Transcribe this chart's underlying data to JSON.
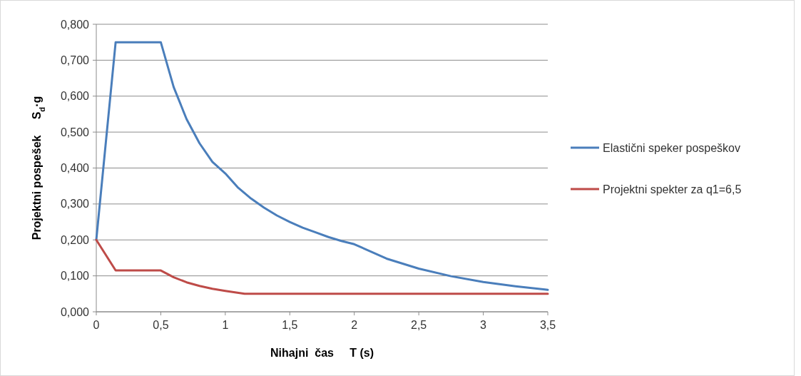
{
  "chart_data": {
    "type": "line",
    "xlabel": "Nihajni  čas     T (s)",
    "ylabel": "Projektni pospešek     S$_{d}$·g",
    "xlim": [
      0,
      3.5
    ],
    "xticks": [
      0,
      {
        "value": 0.5,
        "label": "0,5"
      },
      1,
      {
        "value": 1.5,
        "label": "1,5"
      },
      2,
      {
        "value": 2.5,
        "label": "2,5"
      },
      3,
      {
        "value": 3.5,
        "label": "3,5"
      }
    ],
    "ylim": [
      0,
      0.8
    ],
    "yticks": [
      {
        "value": 0,
        "label": "0,000"
      },
      {
        "value": 0.1,
        "label": "0,100"
      },
      {
        "value": 0.2,
        "label": "0,200"
      },
      {
        "value": 0.3,
        "label": "0,300"
      },
      {
        "value": 0.4,
        "label": "0,400"
      },
      {
        "value": 0.5,
        "label": "0,500"
      },
      {
        "value": 0.6,
        "label": "0,600"
      },
      {
        "value": 0.7,
        "label": "0,700"
      },
      {
        "value": 0.8,
        "label": "0,800"
      }
    ],
    "grid": "y",
    "legend": "right",
    "marker": "none",
    "line_style": "solid",
    "series": [
      {
        "name": "Elastični speker pospeškov",
        "color": "#4a7ebb",
        "x": [
          0,
          0.15,
          0.5,
          0.6,
          0.7,
          0.8,
          0.9,
          1.0,
          1.1,
          1.2,
          1.3,
          1.4,
          1.5,
          1.6,
          1.7,
          1.8,
          1.9,
          2.0,
          2.25,
          2.5,
          2.75,
          3.0,
          3.25,
          3.5
        ],
        "values": [
          0.2,
          0.75,
          0.75,
          0.625,
          0.536,
          0.469,
          0.417,
          0.385,
          0.345,
          0.315,
          0.29,
          0.268,
          0.25,
          0.234,
          0.221,
          0.208,
          0.197,
          0.188,
          0.148,
          0.12,
          0.099,
          0.083,
          0.071,
          0.061
        ]
      },
      {
        "name": "Projektni spekter za q1=6,5",
        "color": "#be4b48",
        "x": [
          0,
          0.15,
          0.5,
          0.6,
          0.7,
          0.8,
          0.9,
          1.0,
          1.15,
          3.5
        ],
        "values": [
          0.2,
          0.115,
          0.115,
          0.096,
          0.082,
          0.072,
          0.064,
          0.058,
          0.05,
          0.05
        ]
      }
    ]
  }
}
